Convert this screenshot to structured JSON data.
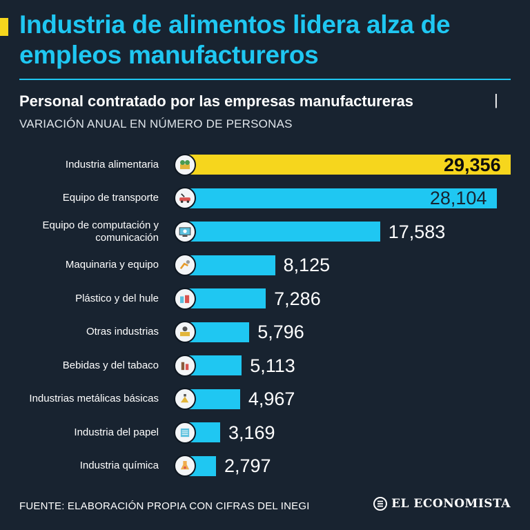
{
  "header": {
    "title": "Industria de alimentos lidera alza de empleos manufactureros"
  },
  "subheader": {
    "title": "Personal contratado por las empresas manufactureras",
    "separator": "|",
    "label": "VARIACIÓN ANUAL EN NÚMERO DE PERSONAS"
  },
  "colors": {
    "background": "#182330",
    "accent": "#1fc7f2",
    "highlight": "#f6d61d"
  },
  "chart_data": {
    "type": "bar",
    "orientation": "horizontal",
    "title": "Personal contratado por las empresas manufactureras",
    "subtitle": "VARIACIÓN ANUAL EN NÚMERO DE PERSONAS",
    "categories": [
      "Industria alimentaria",
      "Equipo de transporte",
      "Equipo de computación y comunicación",
      "Maquinaria y equipo",
      "Plástico y del hule",
      "Otras industrias",
      "Bebidas y del tabaco",
      "Industrias metálicas básicas",
      "Industria del papel",
      "Industria química"
    ],
    "values": [
      29356,
      28104,
      17583,
      8125,
      7286,
      5796,
      5113,
      4967,
      3169,
      2797
    ],
    "value_labels": [
      "29,356",
      "28,104",
      "17,583",
      "8,125",
      "7,286",
      "5,796",
      "5,113",
      "4,967",
      "3,169",
      "2,797"
    ],
    "highlight_index": 0,
    "xlim": [
      0,
      29356
    ],
    "icons": [
      "food-icon",
      "transport-icon",
      "computer-icon",
      "machinery-icon",
      "plastic-icon",
      "industry-icon",
      "beverage-icon",
      "metal-icon",
      "paper-icon",
      "chemical-icon"
    ]
  },
  "footer": {
    "source": "FUENTE: ELABORACIÓN PROPIA CON CIFRAS DEL INEGI",
    "brand": "EL ECONOMISTA",
    "brand_icon": "economista-logo-icon"
  }
}
